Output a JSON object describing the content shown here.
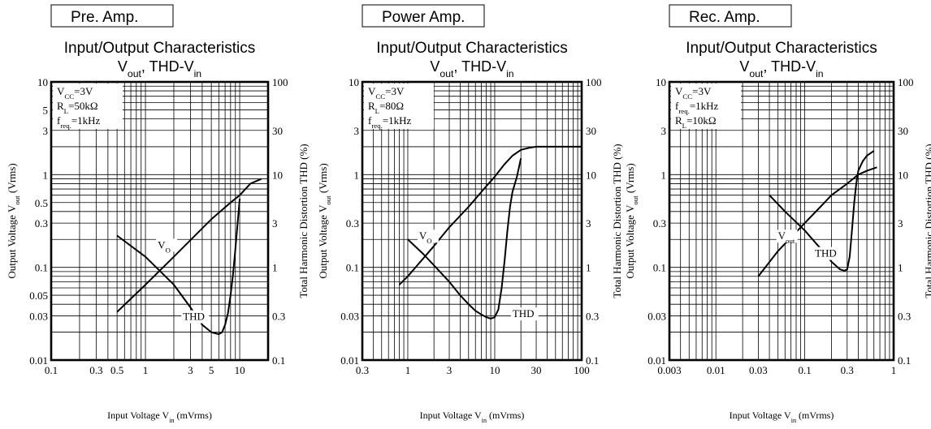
{
  "chart_data": [
    {
      "type": "line",
      "panel_label": "Pre. Amp.",
      "title": "Input/Output Characteristics",
      "subtitle": {
        "base": "V",
        "sub": "out",
        "mid": ", THD-V",
        "sub2": "in"
      },
      "xlabel": {
        "pre": "Input Voltage V",
        "sub": "in",
        "post": " (mVrms)"
      },
      "ylabel_left": {
        "pre": "Output Voltage V",
        "sub": "out",
        "post": " (Vrms)"
      },
      "ylabel_right": "Total Harmonic Distortion THD (%)",
      "x_scale": "log",
      "xlim": [
        0.1,
        20
      ],
      "y_scale": "log",
      "ylim": [
        0.01,
        10
      ],
      "y2_scale": "log",
      "y2lim": [
        0.1,
        100
      ],
      "x_ticks": [
        {
          "v": 0.1,
          "t": "0.1"
        },
        {
          "v": 0.3,
          "t": "0.3"
        },
        {
          "v": 0.5,
          "t": "0.5"
        },
        {
          "v": 1,
          "t": "1"
        },
        {
          "v": 3,
          "t": "3"
        },
        {
          "v": 5,
          "t": "5"
        },
        {
          "v": 10,
          "t": "10"
        }
      ],
      "y_ticks": [
        {
          "v": 0.01,
          "t": "0.01"
        },
        {
          "v": 0.03,
          "t": "0.03"
        },
        {
          "v": 0.05,
          "t": "0.05"
        },
        {
          "v": 0.1,
          "t": "0.1"
        },
        {
          "v": 0.3,
          "t": "0.3"
        },
        {
          "v": 0.5,
          "t": "0.5"
        },
        {
          "v": 1,
          "t": "1"
        },
        {
          "v": 3,
          "t": "3"
        },
        {
          "v": 5,
          "t": "5"
        },
        {
          "v": 10,
          "t": "10"
        }
      ],
      "y2_ticks": [
        {
          "v": 0.1,
          "t": "0.1"
        },
        {
          "v": 0.3,
          "t": "0.3"
        },
        {
          "v": 1,
          "t": "1"
        },
        {
          "v": 3,
          "t": "3"
        },
        {
          "v": 10,
          "t": "10"
        },
        {
          "v": 30,
          "t": "30"
        },
        {
          "v": 100,
          "t": "100"
        }
      ],
      "conditions": [
        {
          "base": "V",
          "sub": "CC",
          "post": "=3V"
        },
        {
          "base": "R",
          "sub": "L",
          "post": "=50kΩ"
        },
        {
          "base": "f",
          "sub": "req.",
          "post": "=1kHz"
        }
      ],
      "series": [
        {
          "name": "VO",
          "axis": "left",
          "x": [
            0.5,
            1,
            2,
            5,
            8,
            10,
            13,
            17
          ],
          "y": [
            0.033,
            0.065,
            0.13,
            0.33,
            0.5,
            0.6,
            0.8,
            0.9
          ]
        },
        {
          "name": "THD",
          "axis": "right",
          "x": [
            0.5,
            1,
            2,
            3,
            4,
            5,
            6,
            6.5,
            7,
            7.5,
            8,
            8.5,
            9,
            9.5,
            10
          ],
          "y": [
            2.2,
            1.3,
            0.65,
            0.37,
            0.24,
            0.2,
            0.19,
            0.2,
            0.24,
            0.32,
            0.5,
            0.85,
            1.6,
            3,
            5.5
          ]
        }
      ],
      "labels": [
        {
          "series": "VO",
          "base": "V",
          "sub": "O",
          "x": 1.35,
          "y": 0.16,
          "axis": "left"
        },
        {
          "series": "THD",
          "text": "THD",
          "x": 2.5,
          "y": 0.27,
          "axis": "right"
        }
      ]
    },
    {
      "type": "line",
      "panel_label": "Power Amp.",
      "title": "Input/Output Characteristics",
      "subtitle": {
        "base": "V",
        "sub": "out",
        "mid": ", THD-V",
        "sub2": "in"
      },
      "xlabel": {
        "pre": "Input Voltage V",
        "sub": "in",
        "post": " (mVrms)"
      },
      "ylabel_left": {
        "pre": "Output Voltage V",
        "sub": "out",
        "post": " (Vrms)"
      },
      "ylabel_right": "Total Harmonic Distortion THD (%)",
      "x_scale": "log",
      "xlim": [
        0.3,
        100
      ],
      "y_scale": "log",
      "ylim": [
        0.01,
        10
      ],
      "y2_scale": "log",
      "y2lim": [
        0.1,
        100
      ],
      "x_ticks": [
        {
          "v": 0.3,
          "t": "0.3"
        },
        {
          "v": 1,
          "t": "1"
        },
        {
          "v": 3,
          "t": "3"
        },
        {
          "v": 10,
          "t": "10"
        },
        {
          "v": 30,
          "t": "30"
        },
        {
          "v": 100,
          "t": "100"
        }
      ],
      "y_ticks": [
        {
          "v": 0.01,
          "t": "0.01"
        },
        {
          "v": 0.03,
          "t": "0.03"
        },
        {
          "v": 0.1,
          "t": "0.1"
        },
        {
          "v": 0.3,
          "t": "0.3"
        },
        {
          "v": 1,
          "t": "1"
        },
        {
          "v": 3,
          "t": "3"
        },
        {
          "v": 10,
          "t": "10"
        }
      ],
      "y2_ticks": [
        {
          "v": 0.1,
          "t": "0.1"
        },
        {
          "v": 0.3,
          "t": "0.3"
        },
        {
          "v": 1,
          "t": "1"
        },
        {
          "v": 3,
          "t": "3"
        },
        {
          "v": 10,
          "t": "10"
        },
        {
          "v": 30,
          "t": "30"
        },
        {
          "v": 100,
          "t": "100"
        }
      ],
      "conditions": [
        {
          "base": "V",
          "sub": "CC",
          "post": "=3V"
        },
        {
          "base": "R",
          "sub": "L",
          "post": "=80Ω"
        },
        {
          "base": "f",
          "sub": "req.",
          "post": "=1kHz"
        }
      ],
      "series": [
        {
          "name": "VO",
          "axis": "left",
          "x": [
            0.8,
            1,
            2,
            3,
            5,
            8,
            10,
            13,
            16,
            20,
            25,
            30,
            40,
            60,
            100
          ],
          "y": [
            0.065,
            0.08,
            0.17,
            0.27,
            0.45,
            0.75,
            0.95,
            1.3,
            1.6,
            1.85,
            1.95,
            2,
            2,
            2,
            2
          ]
        },
        {
          "name": "THD",
          "axis": "right",
          "x": [
            1,
            1.5,
            2,
            3,
            4,
            5,
            6,
            7,
            8,
            9,
            10,
            11,
            12,
            13,
            14,
            15,
            16,
            18,
            20
          ],
          "y": [
            2,
            1.4,
            1.05,
            0.7,
            0.5,
            0.4,
            0.34,
            0.31,
            0.29,
            0.28,
            0.29,
            0.35,
            0.6,
            1.2,
            2.5,
            4.5,
            6.5,
            9.5,
            15
          ]
        }
      ],
      "labels": [
        {
          "series": "VO",
          "base": "V",
          "sub": "O",
          "x": 1.35,
          "y": 0.2,
          "axis": "left"
        },
        {
          "series": "THD",
          "text": "THD",
          "x": 16,
          "y": 0.29,
          "axis": "right"
        }
      ]
    },
    {
      "type": "line",
      "panel_label": "Rec. Amp.",
      "title": "Input/Output Characteristics",
      "subtitle": {
        "base": "V",
        "sub": "out",
        "mid": ", THD-V",
        "sub2": "in"
      },
      "xlabel": {
        "pre": "Input Voltage V",
        "sub": "in",
        "post": " (mVrms)"
      },
      "ylabel_left": {
        "pre": "Output Voltage V",
        "sub": "out",
        "post": " (Vrms)"
      },
      "ylabel_right": "Total Harmonic Distortion THD (%)",
      "x_scale": "log",
      "xlim": [
        0.003,
        1
      ],
      "y_scale": "log",
      "ylim": [
        0.01,
        10
      ],
      "y2_scale": "log",
      "y2lim": [
        0.1,
        100
      ],
      "x_ticks": [
        {
          "v": 0.003,
          "t": "0.003"
        },
        {
          "v": 0.01,
          "t": "0.01"
        },
        {
          "v": 0.03,
          "t": "0.03"
        },
        {
          "v": 0.1,
          "t": "0.1"
        },
        {
          "v": 0.3,
          "t": "0.3"
        },
        {
          "v": 1,
          "t": "1"
        }
      ],
      "y_ticks": [
        {
          "v": 0.01,
          "t": "0.01"
        },
        {
          "v": 0.03,
          "t": "0.03"
        },
        {
          "v": 0.1,
          "t": "0.1"
        },
        {
          "v": 0.3,
          "t": "0.3"
        },
        {
          "v": 1,
          "t": "1"
        },
        {
          "v": 3,
          "t": "3"
        },
        {
          "v": 10,
          "t": "10"
        }
      ],
      "y2_ticks": [
        {
          "v": 0.1,
          "t": "0.1"
        },
        {
          "v": 0.3,
          "t": "0.3"
        },
        {
          "v": 1,
          "t": "1"
        },
        {
          "v": 3,
          "t": "3"
        },
        {
          "v": 10,
          "t": "10"
        },
        {
          "v": 30,
          "t": "30"
        },
        {
          "v": 100,
          "t": "100"
        }
      ],
      "conditions": [
        {
          "base": "V",
          "sub": "CC",
          "post": "=3V"
        },
        {
          "base": "f",
          "sub": "req.",
          "post": "=1kHz"
        },
        {
          "base": "R",
          "sub": "L",
          "post": "=10kΩ"
        }
      ],
      "series": [
        {
          "name": "Vout",
          "axis": "left",
          "x": [
            0.03,
            0.05,
            0.1,
            0.15,
            0.2,
            0.3,
            0.4,
            0.5,
            0.65
          ],
          "y": [
            0.08,
            0.15,
            0.3,
            0.45,
            0.6,
            0.8,
            1,
            1.1,
            1.2
          ]
        },
        {
          "name": "THD",
          "axis": "right",
          "x": [
            0.04,
            0.06,
            0.1,
            0.15,
            0.2,
            0.25,
            0.28,
            0.3,
            0.32,
            0.34,
            0.36,
            0.38,
            0.4,
            0.45,
            0.5,
            0.6
          ],
          "y": [
            6,
            4,
            2.5,
            1.6,
            1.15,
            0.95,
            0.92,
            0.95,
            1.3,
            2.5,
            5,
            8,
            11,
            14,
            16,
            18
          ]
        }
      ],
      "labels": [
        {
          "series": "Vout",
          "base": "V",
          "sub": "out",
          "x": 0.05,
          "y": 0.2,
          "axis": "left"
        },
        {
          "series": "THD",
          "text": "THD",
          "x": 0.13,
          "y": 0.13,
          "axis": "left"
        }
      ]
    }
  ]
}
